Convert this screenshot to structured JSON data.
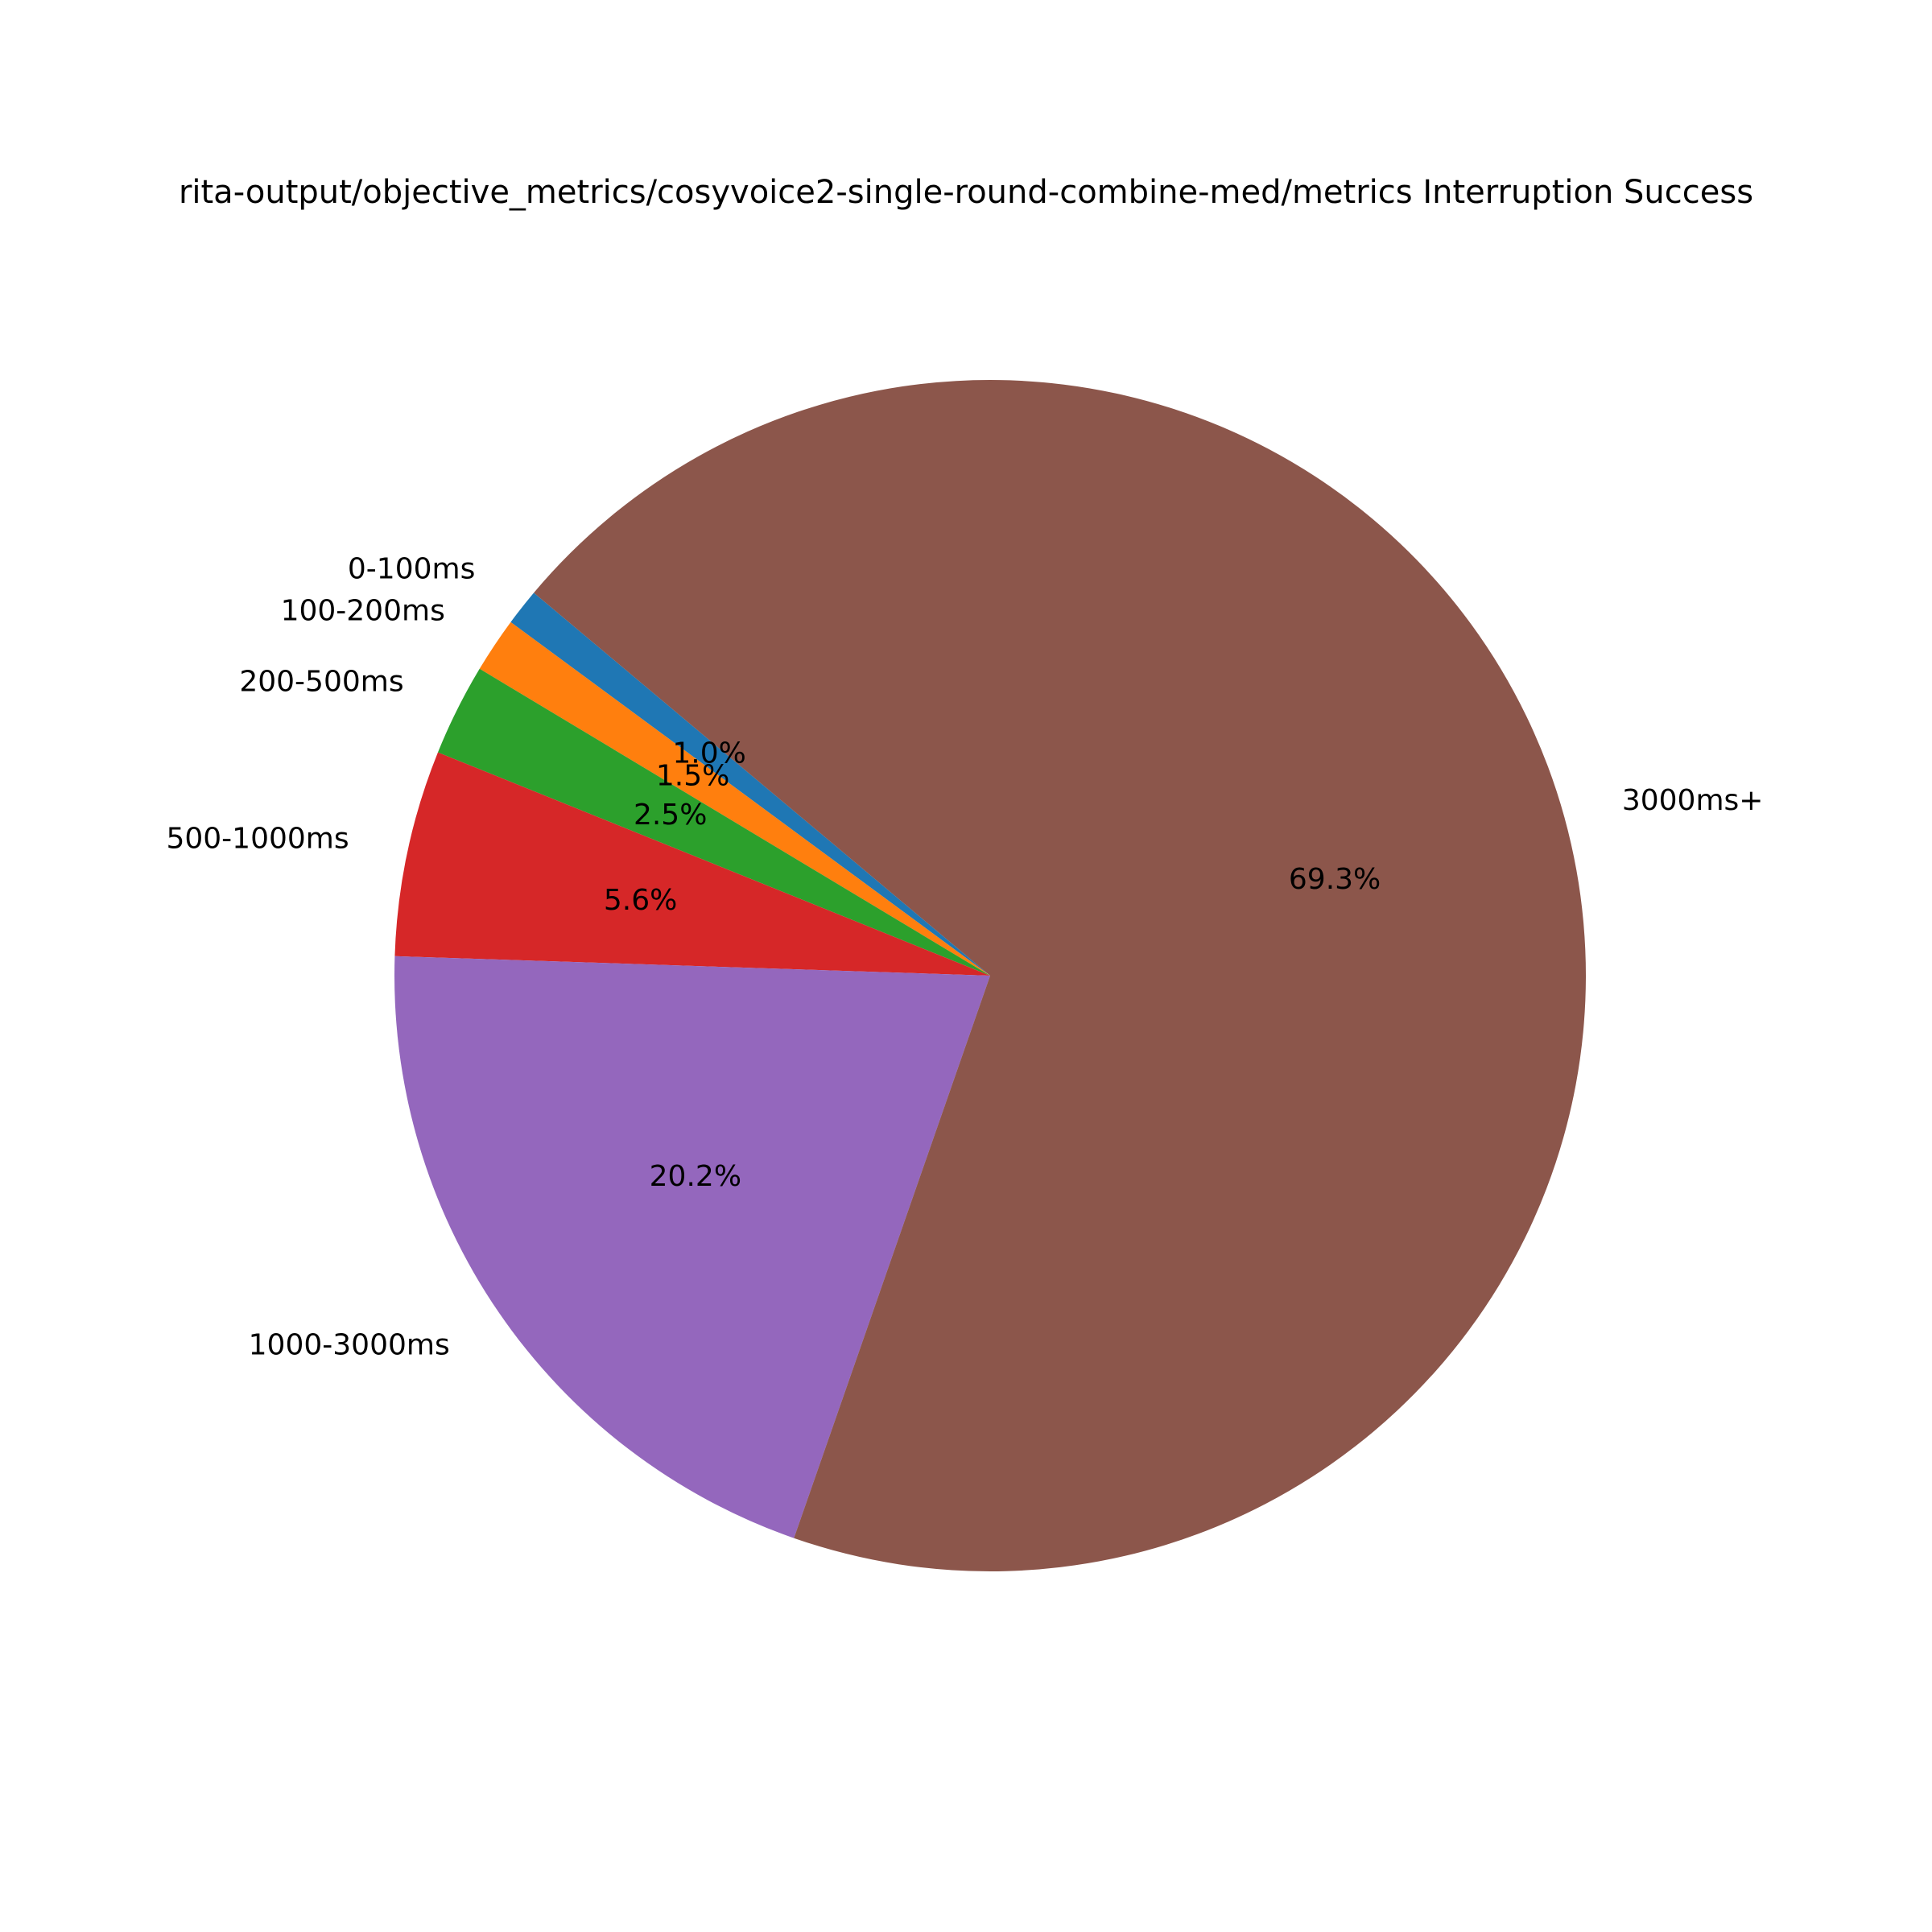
{
  "chart_data": {
    "type": "pie",
    "title": "rita-output/objective_metrics/cosyvoice2-single-round-combine-med/metrics Interruption Success",
    "categories": [
      "0-100ms",
      "100-200ms",
      "200-500ms",
      "500-1000ms",
      "1000-3000ms",
      "3000ms+"
    ],
    "values": [
      1.0,
      1.5,
      2.5,
      5.6,
      20.2,
      69.3
    ],
    "value_labels": [
      "1.0%",
      "1.5%",
      "2.5%",
      "5.6%",
      "20.2%",
      "69.3%"
    ],
    "colors": [
      "#1f77b4",
      "#ff7f0e",
      "#2ca02c",
      "#d62728",
      "#9467bd",
      "#8c564b"
    ],
    "start_angle_deg": 140,
    "direction": "counterclockwise",
    "legend": "none"
  }
}
